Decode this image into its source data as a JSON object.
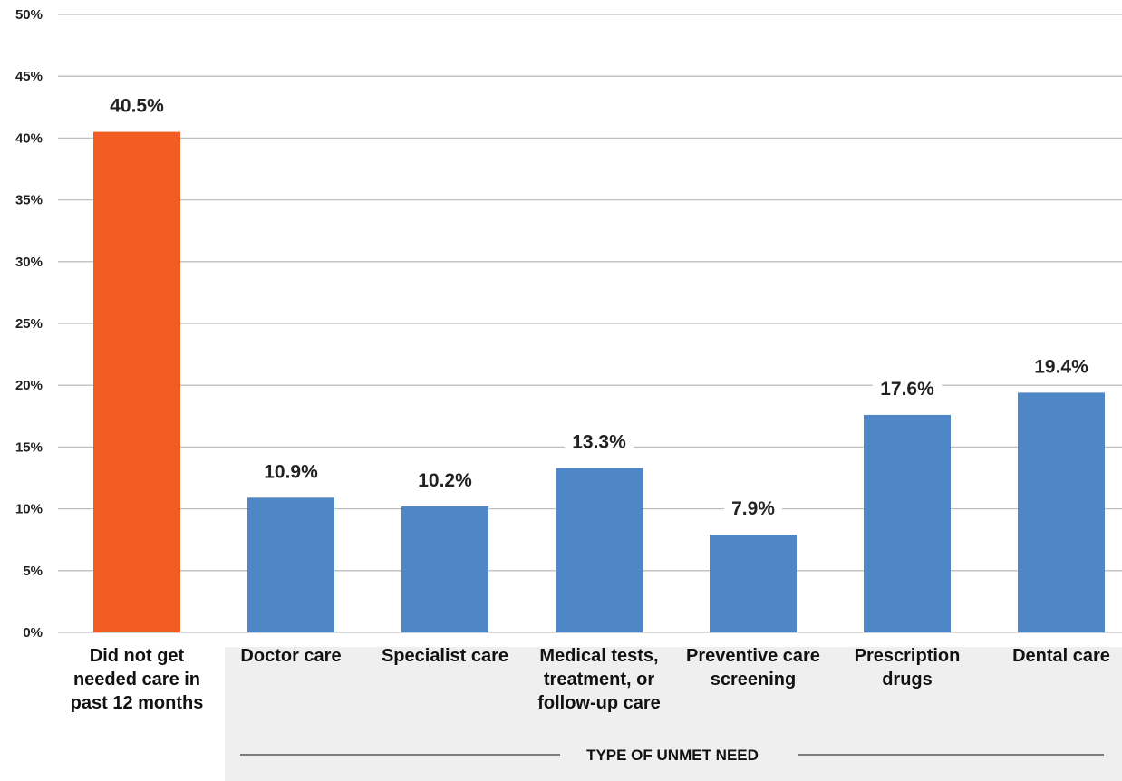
{
  "chart_data": {
    "type": "bar",
    "categories": [
      "Did not get needed care in past 12 months",
      "Doctor care",
      "Specialist care",
      "Medical tests, treatment, or follow-up care",
      "Preventive care screening",
      "Prescription drugs",
      "Dental care"
    ],
    "category_lines": [
      [
        "Did not get",
        "needed care in",
        "past 12 months"
      ],
      [
        "Doctor care"
      ],
      [
        "Specialist care"
      ],
      [
        "Medical tests,",
        "treatment, or",
        "follow-up care"
      ],
      [
        "Preventive care",
        "screening"
      ],
      [
        "Prescription",
        "drugs"
      ],
      [
        "Dental care"
      ]
    ],
    "values": [
      40.5,
      10.9,
      10.2,
      13.3,
      7.9,
      17.6,
      19.4
    ],
    "data_labels": [
      "40.5%",
      "10.9%",
      "10.2%",
      "13.3%",
      "7.9%",
      "17.6%",
      "19.4%"
    ],
    "bar_colors": [
      "#F15D22",
      "#4F86C6",
      "#4F86C6",
      "#4F86C6",
      "#4F86C6",
      "#4F86C6",
      "#4F86C6"
    ],
    "ylim": [
      0,
      50
    ],
    "yticks": [
      0,
      5,
      10,
      15,
      20,
      25,
      30,
      35,
      40,
      45,
      50
    ],
    "ytick_labels": [
      "0%",
      "5%",
      "10%",
      "15%",
      "20%",
      "25%",
      "30%",
      "35%",
      "40%",
      "45%",
      "50%"
    ],
    "grid": true,
    "group_title": "TYPE OF UNMET NEED",
    "gridline_color": "#BFBFBF",
    "group_bg_color": "#EFEFEF"
  }
}
